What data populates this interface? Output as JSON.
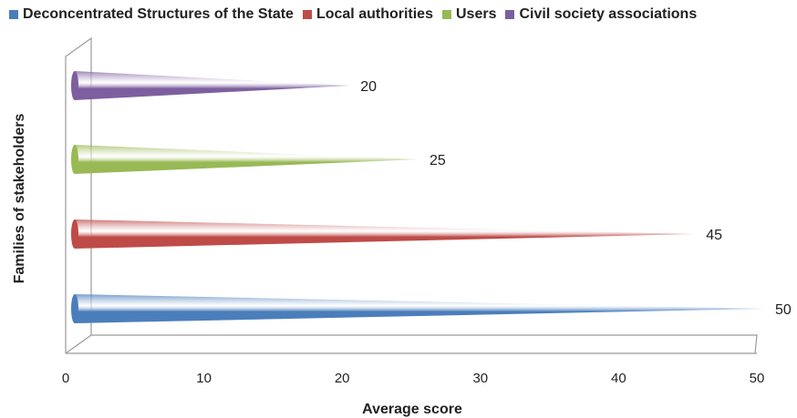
{
  "chart_data": {
    "type": "bar",
    "orientation": "horizontal",
    "style": "3d-cone",
    "title": "",
    "xlabel": "Average score",
    "ylabel": "Families of stakeholders",
    "xlim": [
      0,
      50
    ],
    "xticks": [
      "0",
      "10",
      "20",
      "30",
      "40",
      "50"
    ],
    "grid": false,
    "legend_position": "top",
    "series": [
      {
        "name": "Deconcentrated Structures of the State",
        "value": 50,
        "label": "50",
        "color": "#4a7ebb"
      },
      {
        "name": "Local authorities",
        "value": 45,
        "label": "45",
        "color": "#be4b48"
      },
      {
        "name": "Users",
        "value": 25,
        "label": "25",
        "color": "#98b954"
      },
      {
        "name": "Civil society associations",
        "value": 20,
        "label": "20",
        "color": "#7d5fa0"
      }
    ]
  }
}
